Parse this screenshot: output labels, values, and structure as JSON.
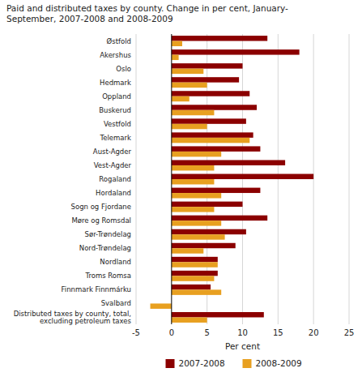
{
  "chart_data": {
    "type": "bar",
    "orientation": "horizontal",
    "title": "Paid and distributed taxes by county. Change in per cent, January-\nSeptember, 2007-2008 and 2008-2009",
    "categories": [
      "Østfold",
      "Akershus",
      "Oslo",
      "Hedmark",
      "Oppland",
      "Buskerud",
      "Vestfold",
      "Telemark",
      "Aust-Agder",
      "Vest-Agder",
      "Rogaland",
      "Hordaland",
      "Sogn og Fjordane",
      "Møre og Romsdal",
      "Sør-Trøndelag",
      "Nord-Trøndelag",
      "Nordland",
      "Troms Romsa",
      "Finnmark Finnmárku",
      "Svalbard",
      "Distributed taxes by county, total,\nexcluding petroleum taxes"
    ],
    "series": [
      {
        "name": "2007-2008",
        "color": "#8B0000",
        "values": [
          13.5,
          18.0,
          10.0,
          9.5,
          11.0,
          12.0,
          10.5,
          11.5,
          12.5,
          16.0,
          20.0,
          12.5,
          10.0,
          13.5,
          10.5,
          9.0,
          6.5,
          6.5,
          5.5,
          0.0,
          13.0
        ]
      },
      {
        "name": "2008-2009",
        "color": "#E8A020",
        "values": [
          1.5,
          1.0,
          4.5,
          5.0,
          2.5,
          6.0,
          5.0,
          11.0,
          7.0,
          6.0,
          6.0,
          7.0,
          6.0,
          7.0,
          7.5,
          4.5,
          6.5,
          6.0,
          7.0,
          -3.0,
          5.0
        ]
      }
    ],
    "xlabel": "Per cent",
    "xlim": [
      -5,
      25
    ],
    "xticks": [
      -5,
      0,
      5,
      10,
      15,
      20,
      25
    ],
    "grid": true,
    "legend": "bottom"
  }
}
